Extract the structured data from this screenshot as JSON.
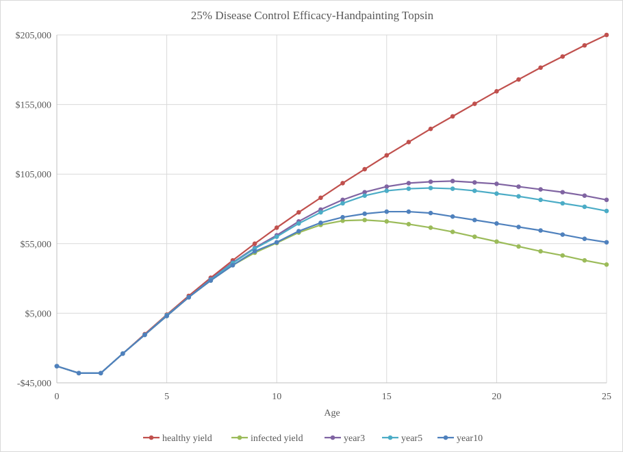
{
  "chart_data": {
    "type": "line",
    "title": "25% Disease Control Efficacy-Handpainting  Topsin",
    "xlabel": "Age",
    "ylabel": "",
    "xlim": [
      0,
      25
    ],
    "ylim": [
      -45000,
      205000
    ],
    "x_ticks": [
      0,
      5,
      10,
      15,
      20,
      25
    ],
    "y_ticks": [
      -45000,
      5000,
      55000,
      105000,
      155000,
      205000
    ],
    "y_tick_labels": [
      "-$45,000",
      "$5,000",
      "$55,000",
      "$105,000",
      "$155,000",
      "$205,000"
    ],
    "grid": "vertical and horizontal major gridlines",
    "legend_position": "bottom",
    "x": [
      0,
      1,
      2,
      3,
      4,
      5,
      6,
      7,
      8,
      9,
      10,
      11,
      12,
      13,
      14,
      15,
      16,
      17,
      18,
      19,
      20,
      21,
      22,
      23,
      24,
      25
    ],
    "series": [
      {
        "name": "healthy yield",
        "color": "#c0504d",
        "values": [
          -33000,
          -38000,
          -38000,
          -24000,
          -10000,
          4000,
          17500,
          30500,
          43000,
          55000,
          66500,
          77500,
          88000,
          98500,
          108500,
          118500,
          128000,
          137500,
          146500,
          155500,
          164500,
          173000,
          181500,
          189500,
          197500,
          205000
        ]
      },
      {
        "name": "infected yield",
        "color": "#9bbb59",
        "values": [
          -33000,
          -38000,
          -38000,
          -24000,
          -10500,
          3000,
          16500,
          28500,
          39500,
          48500,
          55500,
          63000,
          68500,
          71500,
          72000,
          71000,
          69000,
          66500,
          63500,
          60000,
          56500,
          53000,
          49500,
          46500,
          43000,
          40000
        ]
      },
      {
        "name": "year3",
        "color": "#8064a2",
        "values": [
          -33000,
          -38000,
          -38000,
          -24000,
          -10500,
          3500,
          16500,
          29500,
          41500,
          52000,
          61000,
          71000,
          79500,
          86500,
          92000,
          96000,
          98500,
          99500,
          100000,
          99000,
          98000,
          96000,
          94000,
          92000,
          89500,
          86500
        ]
      },
      {
        "name": "year5",
        "color": "#4bacc6",
        "values": [
          -33000,
          -38000,
          -38000,
          -24000,
          -10500,
          3500,
          16500,
          29000,
          41000,
          51500,
          60000,
          69500,
          77500,
          84000,
          89500,
          93000,
          94500,
          95000,
          94500,
          93000,
          91000,
          89000,
          86500,
          84000,
          81500,
          78500
        ]
      },
      {
        "name": "year10",
        "color": "#4f81bd",
        "values": [
          -33000,
          -38000,
          -38000,
          -24000,
          -10500,
          3000,
          16500,
          28500,
          39500,
          49500,
          56000,
          64000,
          70000,
          74000,
          76500,
          78000,
          78000,
          77000,
          74500,
          72000,
          69500,
          67000,
          64500,
          61500,
          58500,
          56000
        ]
      }
    ]
  }
}
